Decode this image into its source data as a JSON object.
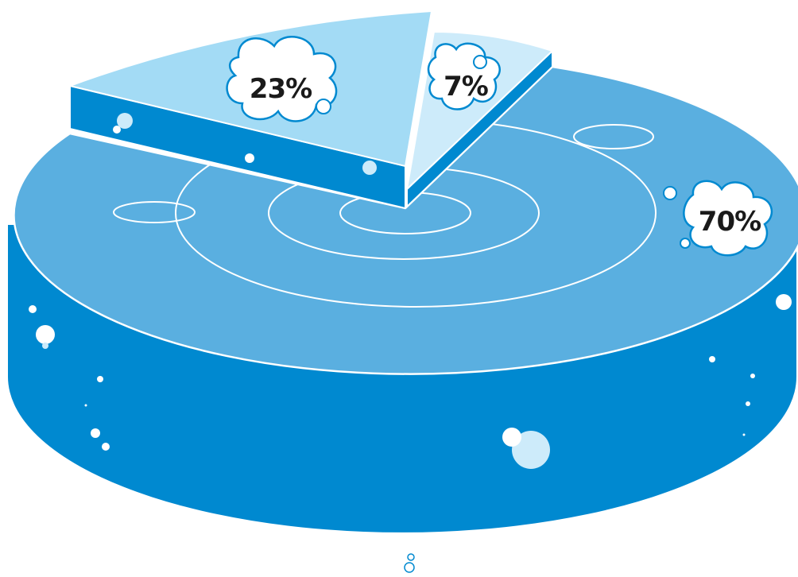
{
  "chart_data": {
    "type": "pie",
    "style": "3d-exploded",
    "slices": [
      {
        "label": "70%",
        "value": 70,
        "color": "#5aafe0"
      },
      {
        "label": "23%",
        "value": 23,
        "color": "#a3dbf5"
      },
      {
        "label": "7%",
        "value": 7,
        "color": "#cdebfa"
      }
    ],
    "side_color": "#0089d0",
    "outline_color": "#ffffff"
  }
}
